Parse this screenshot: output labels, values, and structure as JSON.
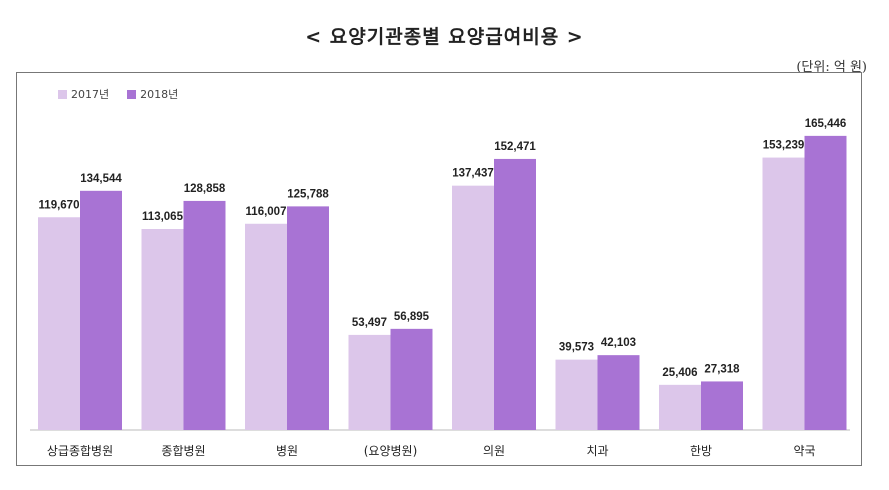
{
  "header": {
    "title": "< 요양기관종별 요양급여비용 >",
    "unit": "(단위: 억 원)"
  },
  "colors": {
    "series_2017": "#dcc6ea",
    "series_2018": "#a873d4"
  },
  "chart_data": {
    "type": "bar",
    "title": "< 요양기관종별 요양급여비용 >",
    "unit": "(단위: 억 원)",
    "xlabel": "",
    "ylabel": "",
    "categories": [
      "상급종합병원",
      "종합병원",
      "병원",
      "(요양병원)",
      "의원",
      "치과",
      "한방",
      "약국"
    ],
    "series": [
      {
        "name": "2017년",
        "values": [
          119670,
          113065,
          116007,
          53497,
          137437,
          39573,
          25406,
          153239
        ]
      },
      {
        "name": "2018년",
        "values": [
          134544,
          128858,
          125788,
          56895,
          152471,
          42103,
          27318,
          165446
        ]
      }
    ],
    "value_labels": [
      [
        "119,670",
        "113,065",
        "116,007",
        "53,497",
        "137,437",
        "39,573",
        "25,406",
        "153,239"
      ],
      [
        "134,544",
        "128,858",
        "125,788",
        "56,895",
        "152,471",
        "42,103",
        "27,318",
        "165,446"
      ]
    ],
    "ylim": [
      0,
      180000
    ],
    "grid": false,
    "legend_position": "top-left"
  }
}
